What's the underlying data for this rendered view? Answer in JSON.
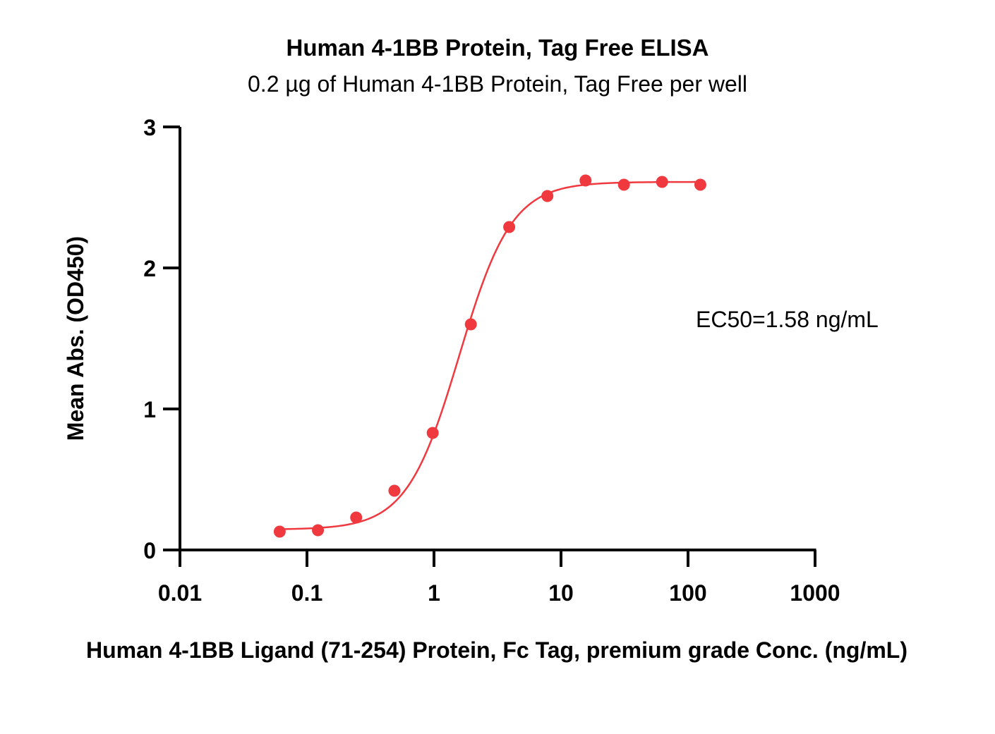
{
  "chart_data": {
    "type": "scatter",
    "title": "Human 4-1BB Protein, Tag Free ELISA",
    "subtitle": "0.2 µg of Human 4-1BB Protein, Tag Free per well",
    "xlabel": "Human 4-1BB Ligand (71-254) Protein, Fc Tag, premium grade Conc. (ng/mL)",
    "ylabel": "Mean Abs. (OD450)",
    "x_scale": "log",
    "xlim": [
      0.01,
      1000
    ],
    "ylim": [
      0,
      3
    ],
    "x_ticks": [
      0.01,
      0.1,
      1,
      10,
      100,
      1000
    ],
    "x_tick_labels": [
      "0.01",
      "0.1",
      "1",
      "10",
      "100",
      "1000"
    ],
    "y_ticks": [
      0,
      1,
      2,
      3
    ],
    "y_tick_labels": [
      "0",
      "1",
      "2",
      "3"
    ],
    "series": [
      {
        "color": "#f0393f",
        "x": [
          0.061,
          0.122,
          0.244,
          0.488,
          0.977,
          1.95,
          3.91,
          7.81,
          15.6,
          31.3,
          62.5,
          125
        ],
        "y": [
          0.13,
          0.14,
          0.23,
          0.42,
          0.83,
          1.6,
          2.29,
          2.51,
          2.62,
          2.59,
          2.61,
          2.59
        ]
      }
    ],
    "fit": {
      "type": "4PL",
      "bottom": 0.145,
      "top": 2.61,
      "ec50": 1.58,
      "hill": 2.1
    },
    "annotation": "EC50=1.58 ng/mL",
    "grid": false
  }
}
